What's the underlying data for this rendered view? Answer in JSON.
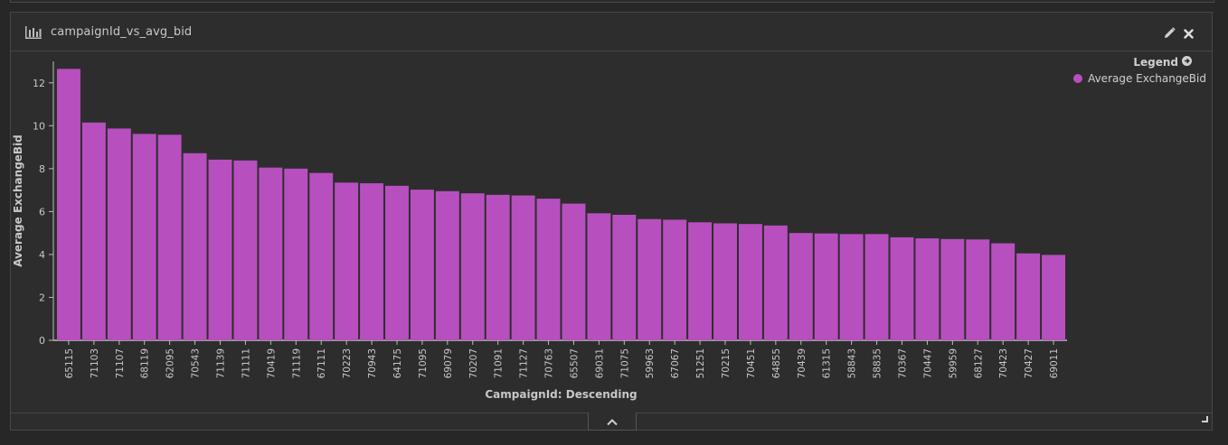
{
  "panel": {
    "title": "campaignId_vs_avg_bid"
  },
  "legend": {
    "title": "Legend",
    "items": [
      "Average ExchangeBid"
    ]
  },
  "colors": {
    "bar": "#b84fbf",
    "axis": "#bdbdbd",
    "text": "#c8c8c8"
  },
  "chart_data": {
    "type": "bar",
    "xlabel": "CampaignId: Descending",
    "ylabel": "Average ExchangeBid",
    "ylim": [
      0,
      13
    ],
    "yticks": [
      0,
      2,
      4,
      6,
      8,
      10,
      12
    ],
    "categories": [
      "65115",
      "71103",
      "71107",
      "68119",
      "62095",
      "70543",
      "71139",
      "71111",
      "70419",
      "71119",
      "67111",
      "70223",
      "70943",
      "64175",
      "71095",
      "69079",
      "70207",
      "71091",
      "71127",
      "70763",
      "65507",
      "69031",
      "71075",
      "59963",
      "67067",
      "51251",
      "70215",
      "70451",
      "64855",
      "70439",
      "61315",
      "58843",
      "58835",
      "70367",
      "70447",
      "59959",
      "68127",
      "70423",
      "70427",
      "69011"
    ],
    "series": [
      {
        "name": "Average ExchangeBid",
        "values": [
          12.65,
          10.15,
          9.87,
          9.62,
          9.58,
          8.72,
          8.42,
          8.38,
          8.05,
          8.0,
          7.8,
          7.35,
          7.32,
          7.2,
          7.02,
          6.95,
          6.85,
          6.78,
          6.75,
          6.6,
          6.37,
          5.92,
          5.85,
          5.65,
          5.62,
          5.5,
          5.45,
          5.42,
          5.35,
          5.0,
          4.98,
          4.95,
          4.95,
          4.8,
          4.75,
          4.72,
          4.7,
          4.52,
          4.05,
          3.98
        ]
      }
    ],
    "grid": false,
    "legend_position": "top-right"
  }
}
